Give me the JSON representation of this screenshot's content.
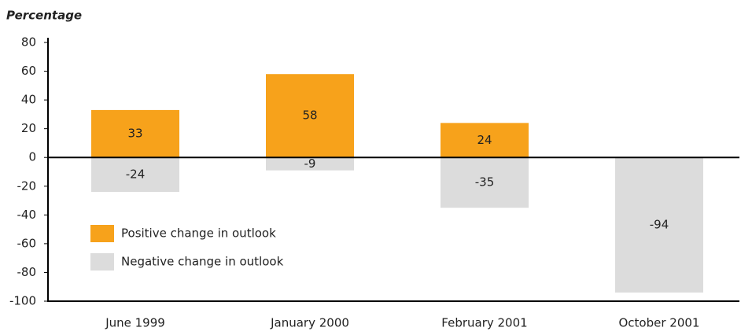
{
  "chart_data": {
    "type": "bar",
    "ylabel": "Percentage",
    "categories": [
      "June 1999",
      "January 2000",
      "February 2001",
      "October 2001"
    ],
    "series": [
      {
        "name": "Positive change in outlook",
        "color": "#f7a21b",
        "values": [
          33,
          58,
          24,
          null
        ]
      },
      {
        "name": "Negative change in outlook",
        "color": "#dcdcdc",
        "values": [
          -24,
          -9,
          -35,
          -94
        ]
      }
    ],
    "ylim": [
      -100,
      80
    ],
    "yticks": [
      -100,
      -80,
      -60,
      -40,
      -20,
      0,
      20,
      40,
      60,
      80
    ],
    "legend": "lower-left"
  }
}
